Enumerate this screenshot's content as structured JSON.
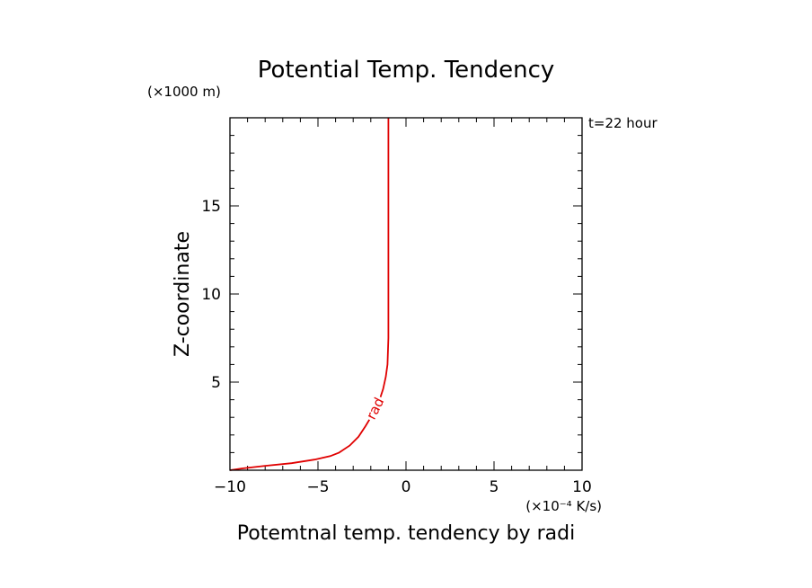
{
  "chart_data": {
    "type": "line",
    "title": "Potential Temp. Tendency",
    "xlabel": "Potemtnal temp. tendency by radi",
    "ylabel": "Z-coordinate",
    "x_unit_label": "(×10⁻⁴ K/s)",
    "y_unit_label": "(×1000 m)",
    "annotation": "t=22 hour",
    "xlim": [
      -10,
      10
    ],
    "ylim": [
      0,
      20
    ],
    "x_ticks": [
      -10,
      -5,
      0,
      5,
      10
    ],
    "y_ticks": [
      5,
      10,
      15
    ],
    "x_tick_labels": [
      "−10",
      "−5",
      "0",
      "5",
      "10"
    ],
    "y_tick_labels": [
      "5",
      "10",
      "15"
    ],
    "series": [
      {
        "name": "rad",
        "color": "#e00000",
        "points": [
          [
            -10.0,
            0.0
          ],
          [
            -9.3,
            0.1
          ],
          [
            -8.0,
            0.25
          ],
          [
            -6.5,
            0.4
          ],
          [
            -5.2,
            0.6
          ],
          [
            -4.3,
            0.8
          ],
          [
            -3.8,
            1.0
          ],
          [
            -3.2,
            1.4
          ],
          [
            -2.7,
            1.9
          ],
          [
            -2.3,
            2.5
          ],
          [
            -2.0,
            3.0
          ],
          [
            -1.7,
            3.5
          ],
          [
            -1.5,
            4.0
          ],
          [
            -1.3,
            4.6
          ],
          [
            -1.15,
            5.3
          ],
          [
            -1.05,
            6.0
          ],
          [
            -1.0,
            7.5
          ],
          [
            -1.0,
            10.0
          ],
          [
            -1.0,
            15.0
          ],
          [
            -1.0,
            20.0
          ]
        ]
      }
    ]
  }
}
